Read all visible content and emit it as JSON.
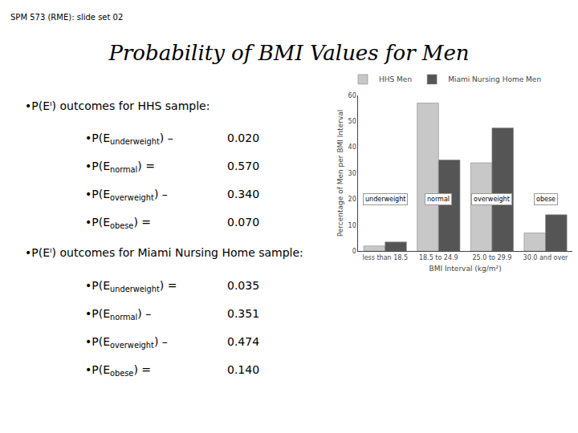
{
  "chart_data": {
    "type": "bar",
    "title": "Probability of BMI Values for Men",
    "categories": [
      "less than 18.5",
      "18.5 to 24.9",
      "25.0 to 29.9",
      "30.0 and over"
    ],
    "series": [
      {
        "name": "HHS Men",
        "color": "#c8c8c8",
        "values": [
          2,
          57,
          34,
          7
        ]
      },
      {
        "name": "Miami Nursing Home Men",
        "color": "#555555",
        "values": [
          3.5,
          35.1,
          47.4,
          14.0
        ]
      }
    ],
    "xlabel": "BMI Interval (kg/m²)",
    "ylabel": "Percentage of Men per BMI Interval",
    "ylim": [
      0,
      60
    ],
    "yticks": [
      0,
      10,
      20,
      30,
      40,
      50,
      60
    ],
    "grid": false,
    "legend": "upper left",
    "annotations": [
      {
        "text": "SPM 573 (RME): slide set 02"
      },
      {
        "text": "•P(Eᴵ) outcomes for HHS sample:"
      },
      {
        "text": "•P(E",
        "sub": "underweight",
        "suffix": ") –",
        "value": "0.020"
      },
      {
        "text": "•P(E",
        "sub": "normal",
        "suffix": ") =",
        "value": "0.570"
      },
      {
        "text": "•P(E",
        "sub": "overweight",
        "suffix": ") –",
        "value": "0.340"
      },
      {
        "text": "•P(E",
        "sub": "obese",
        "suffix": ") =",
        "value": "0.070"
      },
      {
        "text": "•P(Eᴵ) outcomes for Miami Nursing Home sample:"
      },
      {
        "text": "•P(E",
        "sub": "underweight",
        "suffix": ") =",
        "value": "0.035"
      },
      {
        "text": "•P(E",
        "sub": "normal",
        "suffix": ") –",
        "value": "0.351"
      },
      {
        "text": "•P(E",
        "sub": "overweight",
        "suffix": ") –",
        "value": "0.474"
      },
      {
        "text": "•P(E",
        "sub": "obese",
        "suffix": ") =",
        "value": "0.140"
      },
      {
        "text": "underweight",
        "category": "less than 18.5"
      },
      {
        "text": "normal",
        "category": "18.5 to 24.9"
      },
      {
        "text": "overweight",
        "category": "25.0 to 29.9"
      },
      {
        "text": "obese",
        "category": "30.0 and over"
      }
    ]
  }
}
